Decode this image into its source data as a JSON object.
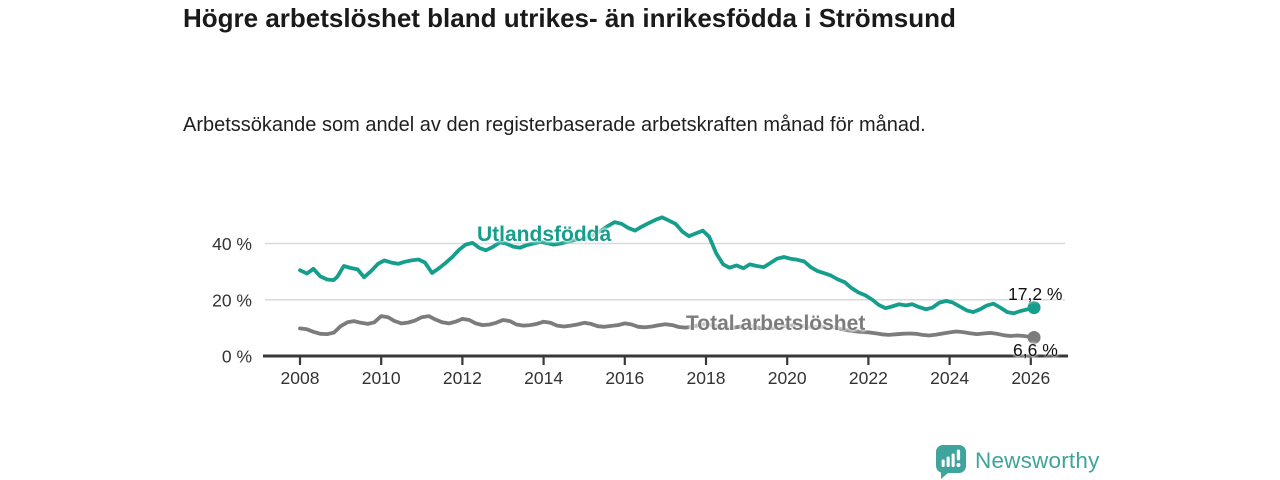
{
  "header": {
    "title": "Högre arbetslöshet bland utrikes- än inrikesfödda i Strömsund",
    "subtitle": "Arbetssökande som andel av den registerbaserade arbetskraften månad för månad."
  },
  "chart_data": {
    "type": "line",
    "title": "Högre arbetslöshet bland utrikes- än inrikesfödda i Strömsund",
    "subtitle": "Arbetssökande som andel av den registerbaserade arbetskraften månad för månad.",
    "unit": "%",
    "x_axis": {
      "tick_years": [
        2008,
        2010,
        2012,
        2014,
        2016,
        2018,
        2020,
        2022,
        2024,
        2026
      ],
      "range": [
        2007.6,
        2026.9
      ]
    },
    "y_axis": {
      "ticks": [
        {
          "value": 0,
          "label": "0 %"
        },
        {
          "value": 20,
          "label": "20 %"
        },
        {
          "value": 40,
          "label": "40 %"
        }
      ],
      "range": [
        0,
        52
      ],
      "grid": true
    },
    "legend_position": "inline-labels",
    "series": [
      {
        "name": "Utlandsfödda",
        "color": "#169e8d",
        "end_label": "17,2 %",
        "end_value": 17.2,
        "points": [
          [
            2008.0,
            30.5
          ],
          [
            2008.17,
            29.3
          ],
          [
            2008.33,
            31.0
          ],
          [
            2008.5,
            28.3
          ],
          [
            2008.67,
            27.2
          ],
          [
            2008.83,
            27.0
          ],
          [
            2008.92,
            28.2
          ],
          [
            2009.08,
            32.0
          ],
          [
            2009.25,
            31.3
          ],
          [
            2009.42,
            30.8
          ],
          [
            2009.58,
            28.0
          ],
          [
            2009.75,
            30.2
          ],
          [
            2009.92,
            32.8
          ],
          [
            2010.08,
            34.0
          ],
          [
            2010.25,
            33.2
          ],
          [
            2010.42,
            32.8
          ],
          [
            2010.58,
            33.5
          ],
          [
            2010.75,
            34.0
          ],
          [
            2010.92,
            34.3
          ],
          [
            2011.08,
            33.2
          ],
          [
            2011.25,
            29.5
          ],
          [
            2011.42,
            31.2
          ],
          [
            2011.58,
            33.0
          ],
          [
            2011.75,
            35.2
          ],
          [
            2011.92,
            37.8
          ],
          [
            2012.08,
            39.6
          ],
          [
            2012.25,
            40.2
          ],
          [
            2012.42,
            38.4
          ],
          [
            2012.58,
            37.6
          ],
          [
            2012.75,
            38.8
          ],
          [
            2012.92,
            40.4
          ],
          [
            2013.08,
            40.0
          ],
          [
            2013.25,
            38.9
          ],
          [
            2013.42,
            38.5
          ],
          [
            2013.58,
            39.4
          ],
          [
            2013.75,
            40.0
          ],
          [
            2013.92,
            40.6
          ],
          [
            2014.08,
            40.1
          ],
          [
            2014.25,
            39.6
          ],
          [
            2014.42,
            40.0
          ],
          [
            2014.58,
            40.6
          ],
          [
            2014.75,
            41.2
          ],
          [
            2014.92,
            41.6
          ],
          [
            2015.08,
            42.2
          ],
          [
            2015.25,
            43.2
          ],
          [
            2015.42,
            44.6
          ],
          [
            2015.58,
            46.2
          ],
          [
            2015.75,
            47.6
          ],
          [
            2015.92,
            47.0
          ],
          [
            2016.08,
            45.6
          ],
          [
            2016.25,
            44.6
          ],
          [
            2016.42,
            46.0
          ],
          [
            2016.58,
            47.2
          ],
          [
            2016.75,
            48.4
          ],
          [
            2016.92,
            49.3
          ],
          [
            2017.08,
            48.2
          ],
          [
            2017.25,
            47.0
          ],
          [
            2017.42,
            44.2
          ],
          [
            2017.58,
            42.6
          ],
          [
            2017.75,
            43.6
          ],
          [
            2017.92,
            44.6
          ],
          [
            2018.08,
            42.4
          ],
          [
            2018.25,
            36.5
          ],
          [
            2018.42,
            32.6
          ],
          [
            2018.58,
            31.4
          ],
          [
            2018.75,
            32.2
          ],
          [
            2018.92,
            31.2
          ],
          [
            2019.08,
            32.6
          ],
          [
            2019.25,
            32.0
          ],
          [
            2019.42,
            31.6
          ],
          [
            2019.58,
            33.0
          ],
          [
            2019.75,
            34.6
          ],
          [
            2019.92,
            35.2
          ],
          [
            2020.08,
            34.6
          ],
          [
            2020.25,
            34.2
          ],
          [
            2020.42,
            33.6
          ],
          [
            2020.58,
            31.6
          ],
          [
            2020.75,
            30.2
          ],
          [
            2020.92,
            29.4
          ],
          [
            2021.08,
            28.6
          ],
          [
            2021.25,
            27.2
          ],
          [
            2021.42,
            26.2
          ],
          [
            2021.58,
            24.2
          ],
          [
            2021.75,
            22.6
          ],
          [
            2021.92,
            21.6
          ],
          [
            2022.08,
            20.2
          ],
          [
            2022.25,
            18.2
          ],
          [
            2022.42,
            17.0
          ],
          [
            2022.58,
            17.6
          ],
          [
            2022.75,
            18.4
          ],
          [
            2022.92,
            18.0
          ],
          [
            2023.08,
            18.4
          ],
          [
            2023.25,
            17.4
          ],
          [
            2023.42,
            16.6
          ],
          [
            2023.58,
            17.2
          ],
          [
            2023.75,
            19.0
          ],
          [
            2023.92,
            19.6
          ],
          [
            2024.08,
            19.0
          ],
          [
            2024.25,
            17.6
          ],
          [
            2024.42,
            16.2
          ],
          [
            2024.58,
            15.6
          ],
          [
            2024.75,
            16.6
          ],
          [
            2024.92,
            18.0
          ],
          [
            2025.08,
            18.6
          ],
          [
            2025.25,
            17.2
          ],
          [
            2025.42,
            15.6
          ],
          [
            2025.58,
            15.2
          ],
          [
            2025.75,
            16.0
          ],
          [
            2025.92,
            16.6
          ],
          [
            2026.08,
            17.2
          ]
        ]
      },
      {
        "name": "Total arbetslöshet",
        "color": "#7c7c7c",
        "end_label": "6,6 %",
        "end_value": 6.6,
        "points": [
          [
            2008.0,
            9.8
          ],
          [
            2008.17,
            9.5
          ],
          [
            2008.33,
            8.6
          ],
          [
            2008.5,
            7.9
          ],
          [
            2008.67,
            7.8
          ],
          [
            2008.83,
            8.3
          ],
          [
            2009.0,
            10.6
          ],
          [
            2009.17,
            12.0
          ],
          [
            2009.33,
            12.4
          ],
          [
            2009.5,
            11.8
          ],
          [
            2009.67,
            11.4
          ],
          [
            2009.83,
            12.0
          ],
          [
            2010.0,
            14.2
          ],
          [
            2010.17,
            13.8
          ],
          [
            2010.33,
            12.4
          ],
          [
            2010.5,
            11.6
          ],
          [
            2010.67,
            11.9
          ],
          [
            2010.83,
            12.6
          ],
          [
            2011.0,
            13.8
          ],
          [
            2011.17,
            14.2
          ],
          [
            2011.33,
            13.0
          ],
          [
            2011.5,
            12.0
          ],
          [
            2011.67,
            11.6
          ],
          [
            2011.83,
            12.2
          ],
          [
            2012.0,
            13.2
          ],
          [
            2012.17,
            12.8
          ],
          [
            2012.33,
            11.6
          ],
          [
            2012.5,
            11.0
          ],
          [
            2012.67,
            11.2
          ],
          [
            2012.83,
            11.8
          ],
          [
            2013.0,
            12.8
          ],
          [
            2013.17,
            12.4
          ],
          [
            2013.33,
            11.2
          ],
          [
            2013.5,
            10.8
          ],
          [
            2013.67,
            11.0
          ],
          [
            2013.83,
            11.4
          ],
          [
            2014.0,
            12.2
          ],
          [
            2014.17,
            11.8
          ],
          [
            2014.33,
            10.8
          ],
          [
            2014.5,
            10.5
          ],
          [
            2014.67,
            10.8
          ],
          [
            2014.83,
            11.2
          ],
          [
            2015.0,
            11.8
          ],
          [
            2015.17,
            11.4
          ],
          [
            2015.33,
            10.6
          ],
          [
            2015.5,
            10.4
          ],
          [
            2015.67,
            10.7
          ],
          [
            2015.83,
            11.0
          ],
          [
            2016.0,
            11.6
          ],
          [
            2016.17,
            11.2
          ],
          [
            2016.33,
            10.4
          ],
          [
            2016.5,
            10.2
          ],
          [
            2016.67,
            10.5
          ],
          [
            2016.83,
            10.9
          ],
          [
            2017.0,
            11.3
          ],
          [
            2017.17,
            11.0
          ],
          [
            2017.33,
            10.3
          ],
          [
            2017.5,
            10.1
          ],
          [
            2017.67,
            10.5
          ],
          [
            2017.83,
            11.0
          ],
          [
            2018.0,
            11.4
          ],
          [
            2018.17,
            11.0
          ],
          [
            2018.33,
            10.2
          ],
          [
            2018.5,
            9.9
          ],
          [
            2018.67,
            10.1
          ],
          [
            2018.83,
            10.4
          ],
          [
            2019.0,
            10.8
          ],
          [
            2019.17,
            10.5
          ],
          [
            2019.33,
            9.9
          ],
          [
            2019.5,
            9.8
          ],
          [
            2019.67,
            10.0
          ],
          [
            2019.83,
            10.4
          ],
          [
            2020.0,
            10.8
          ],
          [
            2020.17,
            11.0
          ],
          [
            2020.33,
            10.8
          ],
          [
            2020.5,
            10.5
          ],
          [
            2020.67,
            10.3
          ],
          [
            2020.83,
            10.4
          ],
          [
            2021.0,
            10.5
          ],
          [
            2021.17,
            10.2
          ],
          [
            2021.33,
            9.6
          ],
          [
            2021.5,
            9.1
          ],
          [
            2021.67,
            8.8
          ],
          [
            2021.83,
            8.6
          ],
          [
            2022.0,
            8.4
          ],
          [
            2022.17,
            8.1
          ],
          [
            2022.33,
            7.7
          ],
          [
            2022.5,
            7.5
          ],
          [
            2022.67,
            7.7
          ],
          [
            2022.83,
            7.9
          ],
          [
            2023.0,
            8.0
          ],
          [
            2023.17,
            7.9
          ],
          [
            2023.33,
            7.5
          ],
          [
            2023.5,
            7.3
          ],
          [
            2023.67,
            7.6
          ],
          [
            2023.83,
            8.0
          ],
          [
            2024.0,
            8.4
          ],
          [
            2024.17,
            8.7
          ],
          [
            2024.33,
            8.5
          ],
          [
            2024.5,
            8.1
          ],
          [
            2024.67,
            7.8
          ],
          [
            2024.83,
            8.0
          ],
          [
            2025.0,
            8.2
          ],
          [
            2025.17,
            7.9
          ],
          [
            2025.33,
            7.4
          ],
          [
            2025.5,
            7.1
          ],
          [
            2025.67,
            7.3
          ],
          [
            2025.83,
            7.1
          ],
          [
            2026.08,
            6.6
          ]
        ]
      }
    ]
  },
  "footer": {
    "brand": "Newsworthy",
    "brand_color": "#3ea49c"
  },
  "colors": {
    "accent_teal": "#169e8d",
    "line_gray": "#7c7c7c",
    "axis": "#383838",
    "grid": "#d9d9d9",
    "tick_text": "#333333"
  }
}
